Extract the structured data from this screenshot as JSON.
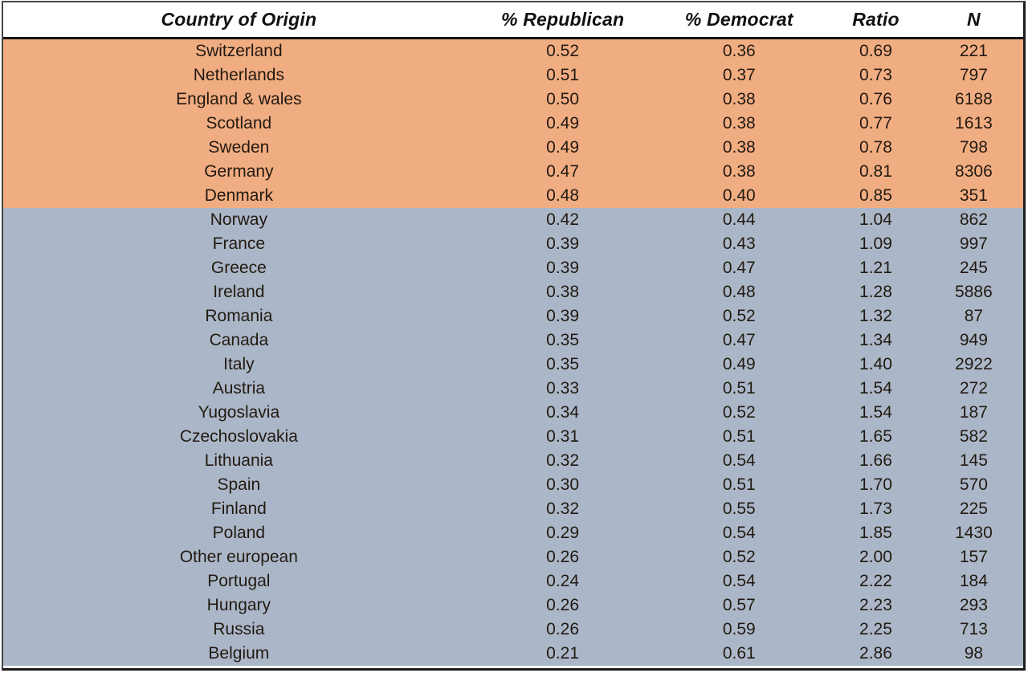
{
  "chart_data": {
    "type": "table",
    "columns": [
      "Country of Origin",
      "% Republican",
      "% Democrat",
      "Ratio",
      "N"
    ],
    "bands": {
      "republican_majority": {
        "color": "#F1AD82",
        "note": "rows with Ratio below 1"
      },
      "democrat_majority": {
        "color": "#ABB7C8",
        "note": "rows with Ratio above 1"
      }
    },
    "rows": [
      {
        "country": "Switzerland",
        "pct_republican": "0.52",
        "pct_democrat": "0.36",
        "ratio": "0.69",
        "n": "221",
        "band": "republican_majority"
      },
      {
        "country": "Netherlands",
        "pct_republican": "0.51",
        "pct_democrat": "0.37",
        "ratio": "0.73",
        "n": "797",
        "band": "republican_majority"
      },
      {
        "country": "England & wales",
        "pct_republican": "0.50",
        "pct_democrat": "0.38",
        "ratio": "0.76",
        "n": "6188",
        "band": "republican_majority"
      },
      {
        "country": "Scotland",
        "pct_republican": "0.49",
        "pct_democrat": "0.38",
        "ratio": "0.77",
        "n": "1613",
        "band": "republican_majority"
      },
      {
        "country": "Sweden",
        "pct_republican": "0.49",
        "pct_democrat": "0.38",
        "ratio": "0.78",
        "n": "798",
        "band": "republican_majority"
      },
      {
        "country": "Germany",
        "pct_republican": "0.47",
        "pct_democrat": "0.38",
        "ratio": "0.81",
        "n": "8306",
        "band": "republican_majority"
      },
      {
        "country": "Denmark",
        "pct_republican": "0.48",
        "pct_democrat": "0.40",
        "ratio": "0.85",
        "n": "351",
        "band": "republican_majority"
      },
      {
        "country": "Norway",
        "pct_republican": "0.42",
        "pct_democrat": "0.44",
        "ratio": "1.04",
        "n": "862",
        "band": "democrat_majority"
      },
      {
        "country": "France",
        "pct_republican": "0.39",
        "pct_democrat": "0.43",
        "ratio": "1.09",
        "n": "997",
        "band": "democrat_majority"
      },
      {
        "country": "Greece",
        "pct_republican": "0.39",
        "pct_democrat": "0.47",
        "ratio": "1.21",
        "n": "245",
        "band": "democrat_majority"
      },
      {
        "country": "Ireland",
        "pct_republican": "0.38",
        "pct_democrat": "0.48",
        "ratio": "1.28",
        "n": "5886",
        "band": "democrat_majority"
      },
      {
        "country": "Romania",
        "pct_republican": "0.39",
        "pct_democrat": "0.52",
        "ratio": "1.32",
        "n": "87",
        "band": "democrat_majority"
      },
      {
        "country": "Canada",
        "pct_republican": "0.35",
        "pct_democrat": "0.47",
        "ratio": "1.34",
        "n": "949",
        "band": "democrat_majority"
      },
      {
        "country": "Italy",
        "pct_republican": "0.35",
        "pct_democrat": "0.49",
        "ratio": "1.40",
        "n": "2922",
        "band": "democrat_majority"
      },
      {
        "country": "Austria",
        "pct_republican": "0.33",
        "pct_democrat": "0.51",
        "ratio": "1.54",
        "n": "272",
        "band": "democrat_majority"
      },
      {
        "country": "Yugoslavia",
        "pct_republican": "0.34",
        "pct_democrat": "0.52",
        "ratio": "1.54",
        "n": "187",
        "band": "democrat_majority"
      },
      {
        "country": "Czechoslovakia",
        "pct_republican": "0.31",
        "pct_democrat": "0.51",
        "ratio": "1.65",
        "n": "582",
        "band": "democrat_majority"
      },
      {
        "country": "Lithuania",
        "pct_republican": "0.32",
        "pct_democrat": "0.54",
        "ratio": "1.66",
        "n": "145",
        "band": "democrat_majority"
      },
      {
        "country": "Spain",
        "pct_republican": "0.30",
        "pct_democrat": "0.51",
        "ratio": "1.70",
        "n": "570",
        "band": "democrat_majority"
      },
      {
        "country": "Finland",
        "pct_republican": "0.32",
        "pct_democrat": "0.55",
        "ratio": "1.73",
        "n": "225",
        "band": "democrat_majority"
      },
      {
        "country": "Poland",
        "pct_republican": "0.29",
        "pct_democrat": "0.54",
        "ratio": "1.85",
        "n": "1430",
        "band": "democrat_majority"
      },
      {
        "country": "Other european",
        "pct_republican": "0.26",
        "pct_democrat": "0.52",
        "ratio": "2.00",
        "n": "157",
        "band": "democrat_majority"
      },
      {
        "country": "Portugal",
        "pct_republican": "0.24",
        "pct_democrat": "0.54",
        "ratio": "2.22",
        "n": "184",
        "band": "democrat_majority"
      },
      {
        "country": "Hungary",
        "pct_republican": "0.26",
        "pct_democrat": "0.57",
        "ratio": "2.23",
        "n": "293",
        "band": "democrat_majority"
      },
      {
        "country": "Russia",
        "pct_republican": "0.26",
        "pct_democrat": "0.59",
        "ratio": "2.25",
        "n": "713",
        "band": "democrat_majority"
      },
      {
        "country": "Belgium",
        "pct_republican": "0.21",
        "pct_democrat": "0.61",
        "ratio": "2.86",
        "n": "98",
        "band": "democrat_majority"
      }
    ]
  }
}
